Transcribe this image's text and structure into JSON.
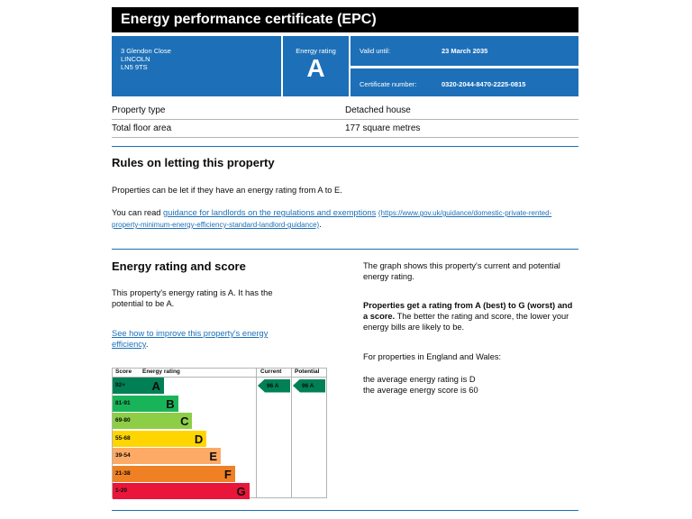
{
  "header": {
    "title": "Energy performance certificate (EPC)"
  },
  "address": {
    "line1": "3 Glendon Close",
    "line2": "LINCOLN",
    "line3": "LN5 9TS"
  },
  "rating_box": {
    "label": "Energy rating",
    "value": "A"
  },
  "validity": {
    "label": "Valid until:",
    "value": "23 March 2035"
  },
  "certificate": {
    "label": "Certificate number:",
    "value": "0320-2044-8470-2225-0815"
  },
  "property": {
    "rows": [
      {
        "label": "Property type",
        "value": "Detached house"
      },
      {
        "label": "Total floor area",
        "value": "177 square metres"
      }
    ]
  },
  "letting": {
    "heading": "Rules on letting this property",
    "para1": "Properties can be let if they have an energy rating from A to E.",
    "para2_prefix": "You can read ",
    "link_text": "guidance for landlords on the regulations and exemptions",
    "link_url_text": "(https://www.gov.uk/guidance/domestic-private-rented-property-minimum-energy-efficiency-standard-landlord-guidance)",
    "para2_suffix": "."
  },
  "score_section": {
    "heading": "Energy rating and score",
    "para1": "This property's energy rating is A. It has the potential to be A.",
    "improve_link": "See how to improve this property's energy efficiency",
    "improve_suffix": ".",
    "right_para1": "The graph shows this property's current and potential energy rating.",
    "right_bold": "Properties get a rating from A (best) to G (worst) and a score.",
    "right_rest": " The better the rating and score, the lower your energy bills are likely to be.",
    "right_para3": "For properties in England and Wales:",
    "avg_rating": "the average energy rating is D",
    "avg_score": "the average energy score is 60"
  },
  "chart_data": {
    "type": "bar",
    "headers": {
      "score": "Score",
      "rating": "Energy rating",
      "current": "Current",
      "potential": "Potential"
    },
    "bands": [
      {
        "score": "92+",
        "letter": "A",
        "color": "#008054",
        "width": 0.36
      },
      {
        "score": "81-91",
        "letter": "B",
        "color": "#19b459",
        "width": 0.46
      },
      {
        "score": "69-80",
        "letter": "C",
        "color": "#8dce46",
        "width": 0.56
      },
      {
        "score": "55-68",
        "letter": "D",
        "color": "#ffd500",
        "width": 0.66
      },
      {
        "score": "39-54",
        "letter": "E",
        "color": "#fcaa65",
        "width": 0.76
      },
      {
        "score": "21-38",
        "letter": "F",
        "color": "#ef8023",
        "width": 0.86
      },
      {
        "score": "1-20",
        "letter": "G",
        "color": "#e9153b",
        "width": 0.96
      }
    ],
    "current": {
      "value": 96,
      "letter": "A",
      "label": "96 A"
    },
    "potential": {
      "value": 96,
      "letter": "A",
      "label": "96 A"
    }
  }
}
